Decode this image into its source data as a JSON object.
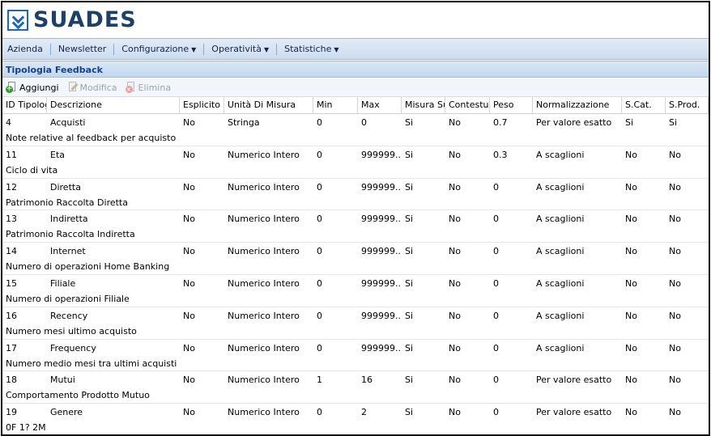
{
  "app": {
    "logo_text": "SUADES",
    "logo_icon": "suades-check-logo-icon"
  },
  "menu": [
    {
      "label": "Azienda",
      "dropdown": false
    },
    {
      "label": "Newsletter",
      "dropdown": false
    },
    {
      "label": "Configurazione",
      "dropdown": true
    },
    {
      "label": "Operatività",
      "dropdown": true
    },
    {
      "label": "Statistiche",
      "dropdown": true
    }
  ],
  "panel": {
    "title": "Tipologia Feedback"
  },
  "toolbar": {
    "add": {
      "label": "Aggiungi",
      "icon": "add-document-icon"
    },
    "edit": {
      "label": "Modifica",
      "icon": "edit-document-icon"
    },
    "delete": {
      "label": "Elimina",
      "icon": "delete-document-icon"
    }
  },
  "columns": [
    "ID Tipologia",
    "Descrizione",
    "Esplicito",
    "Unità Di Misura",
    "Min",
    "Max",
    "Misura Su F",
    "Contestuale",
    "Peso",
    "Normalizzazione",
    "S.Cat.",
    "S.Prod."
  ],
  "rows": [
    {
      "id": "4",
      "desc": "Acquisti",
      "espl": "No",
      "unit": "Stringa",
      "min": "0",
      "max": "0",
      "misura": "Si",
      "cont": "No",
      "peso": "0.7",
      "norm": "Per valore esatto",
      "scat": "Si",
      "sprod": "Si",
      "note": "Note relative al feedback per acquisto"
    },
    {
      "id": "11",
      "desc": "Eta",
      "espl": "No",
      "unit": "Numerico Intero",
      "min": "0",
      "max": "999999...",
      "misura": "Si",
      "cont": "No",
      "peso": "0.3",
      "norm": "A scaglioni",
      "scat": "No",
      "sprod": "No",
      "note": "Ciclo di vita"
    },
    {
      "id": "12",
      "desc": "Diretta",
      "espl": "No",
      "unit": "Numerico Intero",
      "min": "0",
      "max": "999999...",
      "misura": "Si",
      "cont": "No",
      "peso": "0",
      "norm": "A scaglioni",
      "scat": "No",
      "sprod": "No",
      "note": "Patrimonio Raccolta Diretta"
    },
    {
      "id": "13",
      "desc": "Indiretta",
      "espl": "No",
      "unit": "Numerico Intero",
      "min": "0",
      "max": "999999...",
      "misura": "Si",
      "cont": "No",
      "peso": "0",
      "norm": "A scaglioni",
      "scat": "No",
      "sprod": "No",
      "note": "Patrimonio Raccolta Indiretta"
    },
    {
      "id": "14",
      "desc": "Internet",
      "espl": "No",
      "unit": "Numerico Intero",
      "min": "0",
      "max": "999999...",
      "misura": "Si",
      "cont": "No",
      "peso": "0",
      "norm": "A scaglioni",
      "scat": "No",
      "sprod": "No",
      "note": "Numero di operazioni Home Banking"
    },
    {
      "id": "15",
      "desc": "Filiale",
      "espl": "No",
      "unit": "Numerico Intero",
      "min": "0",
      "max": "999999...",
      "misura": "Si",
      "cont": "No",
      "peso": "0",
      "norm": "A scaglioni",
      "scat": "No",
      "sprod": "No",
      "note": "Numero di operazioni Filiale"
    },
    {
      "id": "16",
      "desc": "Recency",
      "espl": "No",
      "unit": "Numerico Intero",
      "min": "0",
      "max": "999999...",
      "misura": "Si",
      "cont": "No",
      "peso": "0",
      "norm": "A scaglioni",
      "scat": "No",
      "sprod": "No",
      "note": "Numero mesi ultimo acquisto"
    },
    {
      "id": "17",
      "desc": "Frequency",
      "espl": "No",
      "unit": "Numerico Intero",
      "min": "0",
      "max": "999999...",
      "misura": "Si",
      "cont": "No",
      "peso": "0",
      "norm": "A scaglioni",
      "scat": "No",
      "sprod": "No",
      "note": "Numero medio mesi tra ultimi acquisti"
    },
    {
      "id": "18",
      "desc": "Mutui",
      "espl": "No",
      "unit": "Numerico Intero",
      "min": "1",
      "max": "16",
      "misura": "Si",
      "cont": "No",
      "peso": "0",
      "norm": "Per valore esatto",
      "scat": "No",
      "sprod": "No",
      "note": "Comportamento Prodotto Mutuo"
    },
    {
      "id": "19",
      "desc": "Genere",
      "espl": "No",
      "unit": "Numerico Intero",
      "min": "0",
      "max": "2",
      "misura": "Si",
      "cont": "No",
      "peso": "0",
      "norm": "Per valore esatto",
      "scat": "No",
      "sprod": "No",
      "note": "0F 1? 2M"
    }
  ]
}
